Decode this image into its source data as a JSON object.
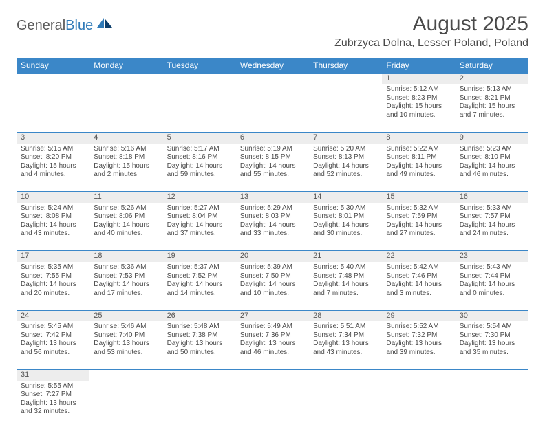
{
  "logo": {
    "textGeneral": "General",
    "textBlue": "Blue"
  },
  "title": "August 2025",
  "location": "Zubrzyca Dolna, Lesser Poland, Poland",
  "colors": {
    "headerBg": "#3b87c8",
    "headerText": "#ffffff",
    "dayNumBg": "#ededed",
    "rowBorder": "#3b87c8",
    "bodyText": "#4a4a4a"
  },
  "dayHeaders": [
    "Sunday",
    "Monday",
    "Tuesday",
    "Wednesday",
    "Thursday",
    "Friday",
    "Saturday"
  ],
  "weeks": [
    [
      null,
      null,
      null,
      null,
      null,
      {
        "n": "1",
        "sr": "5:12 AM",
        "ss": "8:23 PM",
        "dl": "15 hours and 10 minutes."
      },
      {
        "n": "2",
        "sr": "5:13 AM",
        "ss": "8:21 PM",
        "dl": "15 hours and 7 minutes."
      }
    ],
    [
      {
        "n": "3",
        "sr": "5:15 AM",
        "ss": "8:20 PM",
        "dl": "15 hours and 4 minutes."
      },
      {
        "n": "4",
        "sr": "5:16 AM",
        "ss": "8:18 PM",
        "dl": "15 hours and 2 minutes."
      },
      {
        "n": "5",
        "sr": "5:17 AM",
        "ss": "8:16 PM",
        "dl": "14 hours and 59 minutes."
      },
      {
        "n": "6",
        "sr": "5:19 AM",
        "ss": "8:15 PM",
        "dl": "14 hours and 55 minutes."
      },
      {
        "n": "7",
        "sr": "5:20 AM",
        "ss": "8:13 PM",
        "dl": "14 hours and 52 minutes."
      },
      {
        "n": "8",
        "sr": "5:22 AM",
        "ss": "8:11 PM",
        "dl": "14 hours and 49 minutes."
      },
      {
        "n": "9",
        "sr": "5:23 AM",
        "ss": "8:10 PM",
        "dl": "14 hours and 46 minutes."
      }
    ],
    [
      {
        "n": "10",
        "sr": "5:24 AM",
        "ss": "8:08 PM",
        "dl": "14 hours and 43 minutes."
      },
      {
        "n": "11",
        "sr": "5:26 AM",
        "ss": "8:06 PM",
        "dl": "14 hours and 40 minutes."
      },
      {
        "n": "12",
        "sr": "5:27 AM",
        "ss": "8:04 PM",
        "dl": "14 hours and 37 minutes."
      },
      {
        "n": "13",
        "sr": "5:29 AM",
        "ss": "8:03 PM",
        "dl": "14 hours and 33 minutes."
      },
      {
        "n": "14",
        "sr": "5:30 AM",
        "ss": "8:01 PM",
        "dl": "14 hours and 30 minutes."
      },
      {
        "n": "15",
        "sr": "5:32 AM",
        "ss": "7:59 PM",
        "dl": "14 hours and 27 minutes."
      },
      {
        "n": "16",
        "sr": "5:33 AM",
        "ss": "7:57 PM",
        "dl": "14 hours and 24 minutes."
      }
    ],
    [
      {
        "n": "17",
        "sr": "5:35 AM",
        "ss": "7:55 PM",
        "dl": "14 hours and 20 minutes."
      },
      {
        "n": "18",
        "sr": "5:36 AM",
        "ss": "7:53 PM",
        "dl": "14 hours and 17 minutes."
      },
      {
        "n": "19",
        "sr": "5:37 AM",
        "ss": "7:52 PM",
        "dl": "14 hours and 14 minutes."
      },
      {
        "n": "20",
        "sr": "5:39 AM",
        "ss": "7:50 PM",
        "dl": "14 hours and 10 minutes."
      },
      {
        "n": "21",
        "sr": "5:40 AM",
        "ss": "7:48 PM",
        "dl": "14 hours and 7 minutes."
      },
      {
        "n": "22",
        "sr": "5:42 AM",
        "ss": "7:46 PM",
        "dl": "14 hours and 3 minutes."
      },
      {
        "n": "23",
        "sr": "5:43 AM",
        "ss": "7:44 PM",
        "dl": "14 hours and 0 minutes."
      }
    ],
    [
      {
        "n": "24",
        "sr": "5:45 AM",
        "ss": "7:42 PM",
        "dl": "13 hours and 56 minutes."
      },
      {
        "n": "25",
        "sr": "5:46 AM",
        "ss": "7:40 PM",
        "dl": "13 hours and 53 minutes."
      },
      {
        "n": "26",
        "sr": "5:48 AM",
        "ss": "7:38 PM",
        "dl": "13 hours and 50 minutes."
      },
      {
        "n": "27",
        "sr": "5:49 AM",
        "ss": "7:36 PM",
        "dl": "13 hours and 46 minutes."
      },
      {
        "n": "28",
        "sr": "5:51 AM",
        "ss": "7:34 PM",
        "dl": "13 hours and 43 minutes."
      },
      {
        "n": "29",
        "sr": "5:52 AM",
        "ss": "7:32 PM",
        "dl": "13 hours and 39 minutes."
      },
      {
        "n": "30",
        "sr": "5:54 AM",
        "ss": "7:30 PM",
        "dl": "13 hours and 35 minutes."
      }
    ],
    [
      {
        "n": "31",
        "sr": "5:55 AM",
        "ss": "7:27 PM",
        "dl": "13 hours and 32 minutes."
      },
      null,
      null,
      null,
      null,
      null,
      null
    ]
  ],
  "labels": {
    "sunrise": "Sunrise: ",
    "sunset": "Sunset: ",
    "daylight": "Daylight: "
  }
}
